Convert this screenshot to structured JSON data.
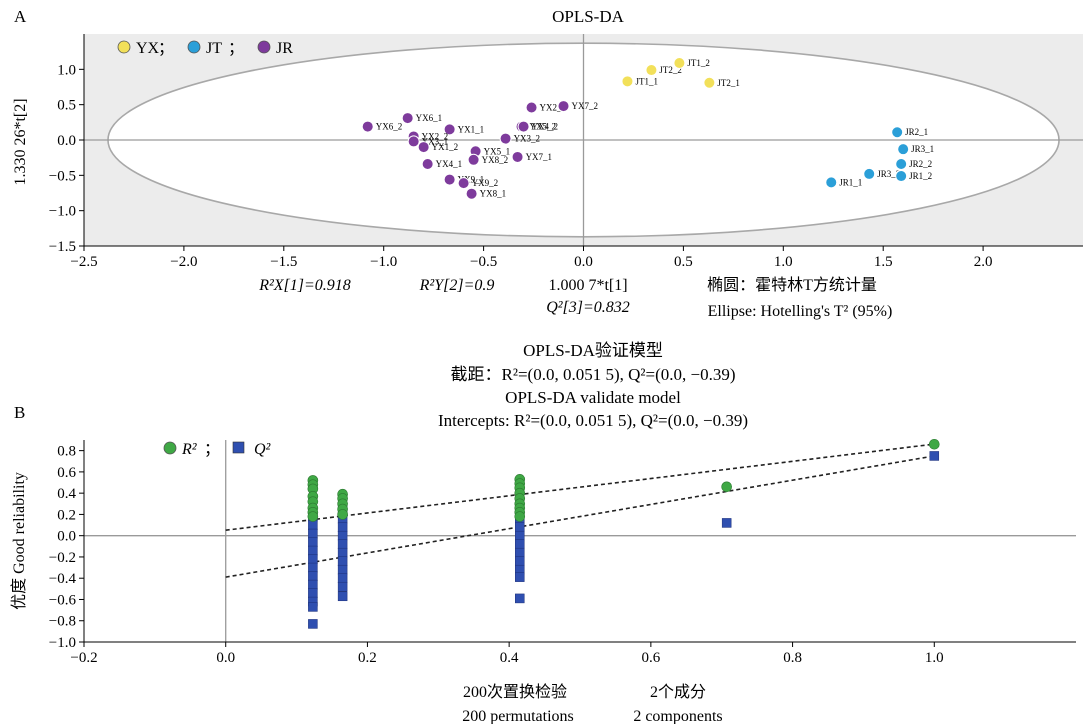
{
  "panel_a": {
    "letter": "A",
    "title": "OPLS-DA",
    "ylabel": "1.330 26*t[2]",
    "xlabel": "1.000 7*t[1]",
    "stat_r2x": "R²X[1]=0.918",
    "stat_r2y": "R²Y[2]=0.9",
    "stat_q2": "Q²[3]=0.832",
    "ellipse_cn": "椭圆：霍特林T方统计量",
    "ellipse_en": "Ellipse: Hotelling's T² (95%)",
    "legend": [
      {
        "name": "YX",
        "color": "#f2e05a"
      },
      {
        "name": "JT",
        "color": "#2b9fd8"
      },
      {
        "name": "JR",
        "color": "#7e3b9c"
      }
    ],
    "legend_sep": "；"
  },
  "panel_b": {
    "letter": "B",
    "title_cn": "OPLS-DA验证模型",
    "intercepts_cn": "截距：R²=(0.0, 0.051 5), Q²=(0.0, −0.39)",
    "title_en": "OPLS-DA validate model",
    "intercepts_en": "Intercepts: R²=(0.0, 0.051 5), Q²=(0.0, −0.39)",
    "ylabel": "优度 Good reliability",
    "xlabel_cn_1": "200次置换检验",
    "xlabel_cn_2": "2个成分",
    "xlabel_en_1": "200 permutations",
    "xlabel_en_2": "2 components",
    "legend": [
      {
        "name": "R²",
        "color": "#3fa845"
      },
      {
        "name": "Q²",
        "color": "#2f4fb0"
      }
    ],
    "legend_sep": "；"
  },
  "chart_data": [
    {
      "type": "scatter",
      "title": "OPLS-DA",
      "xlabel": "1.000 7*t[1]",
      "ylabel": "1.330 26*t[2]",
      "xlim": [
        -2.5,
        2.5
      ],
      "ylim": [
        -1.5,
        1.5
      ],
      "x_ticks": [
        -2.5,
        -2.0,
        -1.5,
        -1.0,
        -0.5,
        0.0,
        0.5,
        1.0,
        1.5,
        2.0
      ],
      "y_ticks": [
        -1.5,
        -1.0,
        -0.5,
        0.0,
        0.5,
        1.0
      ],
      "ellipse": {
        "center": [
          0,
          0
        ],
        "radius_x": 2.38,
        "radius_y": 1.37
      },
      "series": [
        {
          "name": "YX",
          "color": "#f2e05a",
          "points": [
            {
              "label": "JT2_2",
              "x": 0.34,
              "y": 0.99
            },
            {
              "label": "JT1_2",
              "x": 0.48,
              "y": 1.09
            },
            {
              "label": "JT1_1",
              "x": 0.22,
              "y": 0.83
            },
            {
              "label": "JT2_1",
              "x": 0.63,
              "y": 0.81
            }
          ]
        },
        {
          "name": "JT",
          "color": "#2b9fd8",
          "points": [
            {
              "label": "JR2_1",
              "x": 1.57,
              "y": 0.11
            },
            {
              "label": "JR3_1",
              "x": 1.6,
              "y": -0.13
            },
            {
              "label": "JR3_2",
              "x": 1.43,
              "y": -0.48
            },
            {
              "label": "JR2_2",
              "x": 1.59,
              "y": -0.34
            },
            {
              "label": "JR1_1",
              "x": 1.24,
              "y": -0.6
            },
            {
              "label": "JR1_2",
              "x": 1.59,
              "y": -0.51
            }
          ]
        },
        {
          "name": "JR",
          "color": "#7e3b9c",
          "points": [
            {
              "label": "YX2_1",
              "x": -0.26,
              "y": 0.46
            },
            {
              "label": "YX7_2",
              "x": -0.1,
              "y": 0.48
            },
            {
              "label": "YX6_1",
              "x": -0.88,
              "y": 0.31
            },
            {
              "label": "YX6_2",
              "x": -1.08,
              "y": 0.19
            },
            {
              "label": "YX1_1",
              "x": -0.67,
              "y": 0.15
            },
            {
              "label": "YX5_2",
              "x": -0.31,
              "y": 0.19
            },
            {
              "label": "YX4_2",
              "x": -0.3,
              "y": 0.19
            },
            {
              "label": "YX2_2",
              "x": -0.85,
              "y": 0.05
            },
            {
              "label": "YX3_2",
              "x": -0.39,
              "y": 0.02
            },
            {
              "label": "YX3_1",
              "x": -0.85,
              "y": -0.02
            },
            {
              "label": "YX1_2",
              "x": -0.8,
              "y": -0.1
            },
            {
              "label": "YX5_1",
              "x": -0.54,
              "y": -0.16
            },
            {
              "label": "YX7_1",
              "x": -0.33,
              "y": -0.24
            },
            {
              "label": "YX4_1",
              "x": -0.78,
              "y": -0.34
            },
            {
              "label": "YX8_2",
              "x": -0.55,
              "y": -0.28
            },
            {
              "label": "YX9_1",
              "x": -0.67,
              "y": -0.56
            },
            {
              "label": "YX9_2",
              "x": -0.6,
              "y": -0.61
            },
            {
              "label": "YX8_1",
              "x": -0.56,
              "y": -0.76
            }
          ]
        }
      ],
      "stats": {
        "R2X_1": 0.918,
        "R2Y_2": 0.9,
        "Q2_3": 0.832
      }
    },
    {
      "type": "scatter",
      "title": "OPLS-DA validate model",
      "xlabel": "200 permutations / 2 components",
      "ylabel": "Good reliability",
      "xlim": [
        -0.2,
        1.2
      ],
      "ylim": [
        -1.0,
        0.9
      ],
      "x_ticks": [
        -0.2,
        0.0,
        0.2,
        0.4,
        0.6,
        0.8,
        1.0
      ],
      "y_ticks": [
        -1.0,
        -0.8,
        -0.6,
        -0.4,
        -0.2,
        0.0,
        0.2,
        0.4,
        0.6,
        0.8
      ],
      "series": [
        {
          "name": "R²",
          "color": "#3fa845",
          "points": [
            {
              "x": 0.123,
              "y": 0.52
            },
            {
              "x": 0.123,
              "y": 0.48
            },
            {
              "x": 0.123,
              "y": 0.44
            },
            {
              "x": 0.123,
              "y": 0.37
            },
            {
              "x": 0.123,
              "y": 0.32
            },
            {
              "x": 0.123,
              "y": 0.26
            },
            {
              "x": 0.123,
              "y": 0.22
            },
            {
              "x": 0.123,
              "y": 0.18
            },
            {
              "x": 0.165,
              "y": 0.39
            },
            {
              "x": 0.165,
              "y": 0.35
            },
            {
              "x": 0.165,
              "y": 0.3
            },
            {
              "x": 0.165,
              "y": 0.25
            },
            {
              "x": 0.165,
              "y": 0.2
            },
            {
              "x": 0.415,
              "y": 0.53
            },
            {
              "x": 0.415,
              "y": 0.49
            },
            {
              "x": 0.415,
              "y": 0.45
            },
            {
              "x": 0.415,
              "y": 0.4
            },
            {
              "x": 0.415,
              "y": 0.35
            },
            {
              "x": 0.415,
              "y": 0.3
            },
            {
              "x": 0.415,
              "y": 0.26
            },
            {
              "x": 0.415,
              "y": 0.22
            },
            {
              "x": 0.415,
              "y": 0.18
            },
            {
              "x": 0.707,
              "y": 0.46
            },
            {
              "x": 1.0,
              "y": 0.86
            }
          ]
        },
        {
          "name": "Q²",
          "color": "#2f4fb0",
          "points": [
            {
              "x": 0.123,
              "y": 0.18
            },
            {
              "x": 0.123,
              "y": 0.1
            },
            {
              "x": 0.123,
              "y": 0.02
            },
            {
              "x": 0.123,
              "y": -0.06
            },
            {
              "x": 0.123,
              "y": -0.14
            },
            {
              "x": 0.123,
              "y": -0.22
            },
            {
              "x": 0.123,
              "y": -0.3
            },
            {
              "x": 0.123,
              "y": -0.38
            },
            {
              "x": 0.123,
              "y": -0.46
            },
            {
              "x": 0.123,
              "y": -0.54
            },
            {
              "x": 0.123,
              "y": -0.62
            },
            {
              "x": 0.123,
              "y": -0.67
            },
            {
              "x": 0.123,
              "y": -0.83
            },
            {
              "x": 0.165,
              "y": 0.24
            },
            {
              "x": 0.165,
              "y": 0.16
            },
            {
              "x": 0.165,
              "y": 0.08
            },
            {
              "x": 0.165,
              "y": 0.0
            },
            {
              "x": 0.165,
              "y": -0.08
            },
            {
              "x": 0.165,
              "y": -0.16
            },
            {
              "x": 0.165,
              "y": -0.24
            },
            {
              "x": 0.165,
              "y": -0.32
            },
            {
              "x": 0.165,
              "y": -0.4
            },
            {
              "x": 0.165,
              "y": -0.48
            },
            {
              "x": 0.165,
              "y": -0.57
            },
            {
              "x": 0.415,
              "y": 0.16
            },
            {
              "x": 0.415,
              "y": 0.08
            },
            {
              "x": 0.415,
              "y": 0.0
            },
            {
              "x": 0.415,
              "y": -0.08
            },
            {
              "x": 0.415,
              "y": -0.16
            },
            {
              "x": 0.415,
              "y": -0.24
            },
            {
              "x": 0.415,
              "y": -0.32
            },
            {
              "x": 0.415,
              "y": -0.39
            },
            {
              "x": 0.415,
              "y": -0.59
            },
            {
              "x": 0.707,
              "y": 0.12
            },
            {
              "x": 1.0,
              "y": 0.75
            }
          ]
        }
      ],
      "regression_lines": [
        {
          "name": "R²",
          "intercept": 0.0515,
          "slope": 0.81
        },
        {
          "name": "Q²",
          "intercept": -0.39,
          "slope": 1.14
        }
      ]
    }
  ]
}
